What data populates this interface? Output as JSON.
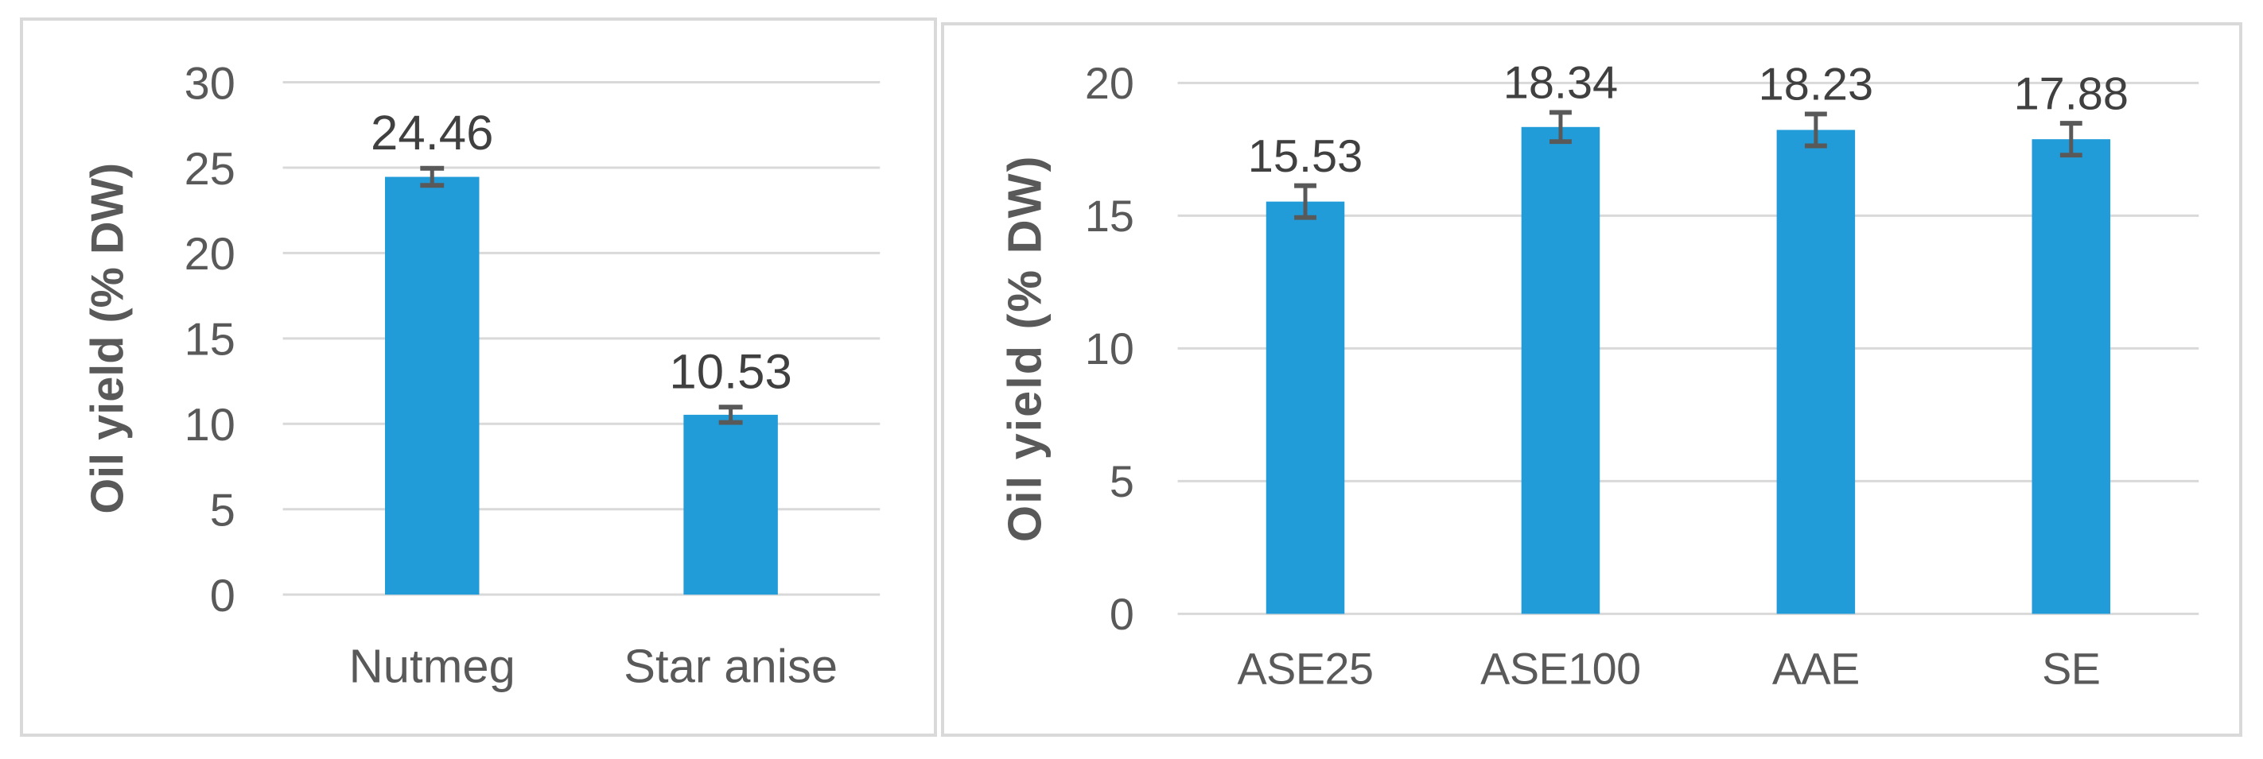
{
  "figure": {
    "description": "Two side-by-side bar charts of essential oil yield",
    "background_color": "#ffffff"
  },
  "styles": {
    "bar_color": "#219cd8",
    "gridline_color": "#d9d9d9",
    "panel_border_color": "#d9d9d9",
    "tick_text_color": "#595959",
    "category_text_color": "#595959",
    "axis_title_color": "#595959",
    "data_label_color": "#404040",
    "error_bar_color": "#595959"
  },
  "chart_data": [
    {
      "id": "left-chart",
      "type": "bar",
      "title": "",
      "xlabel": "",
      "ylabel": "Oil yield (% DW)",
      "categories": [
        "Nutmeg",
        "Star anise"
      ],
      "values": [
        24.46,
        10.53
      ],
      "data_labels": [
        "24.46",
        "10.53"
      ],
      "errors": [
        0.5,
        0.45
      ],
      "ylim": [
        0,
        30
      ],
      "yticks": [
        0,
        5,
        10,
        15,
        20,
        25,
        30
      ],
      "grid": true,
      "legend_position": "none"
    },
    {
      "id": "right-chart",
      "type": "bar",
      "title": "",
      "xlabel": "",
      "ylabel": "Oil yield (% DW)",
      "categories": [
        "ASE25",
        "ASE100",
        "AAE",
        "SE"
      ],
      "values": [
        15.53,
        18.34,
        18.23,
        17.88
      ],
      "data_labels": [
        "15.53",
        "18.34",
        "18.23",
        "17.88"
      ],
      "errors": [
        0.6,
        0.55,
        0.6,
        0.6
      ],
      "ylim": [
        0,
        20
      ],
      "yticks": [
        0,
        5,
        10,
        15,
        20
      ],
      "grid": true,
      "legend_position": "none"
    }
  ]
}
